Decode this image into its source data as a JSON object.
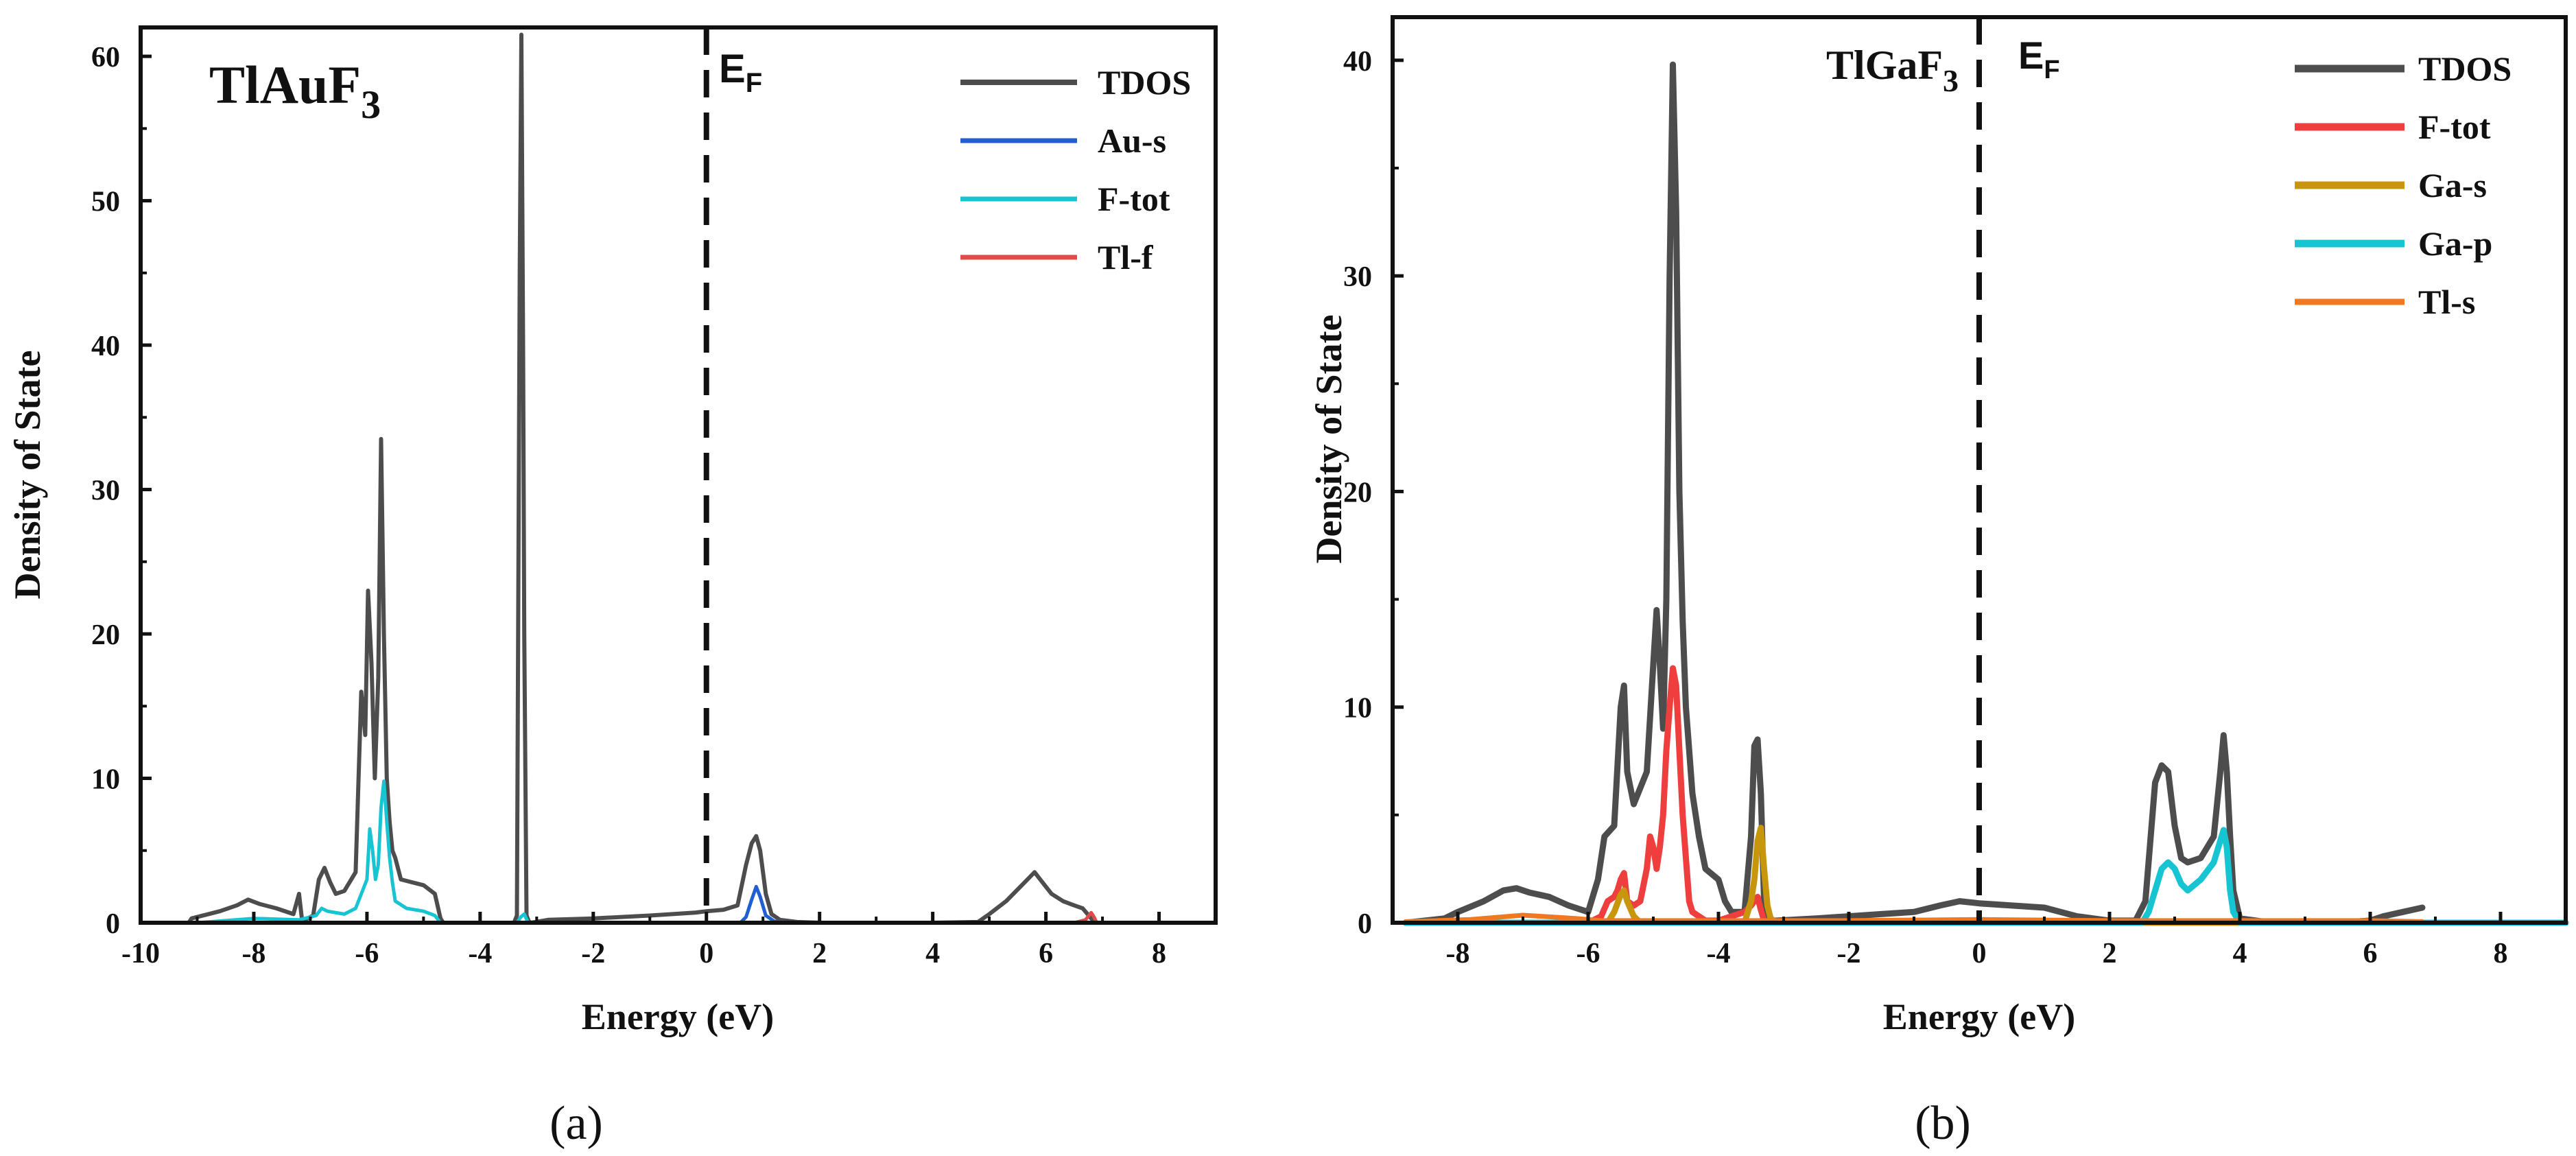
{
  "chart_data": [
    {
      "panel": "a",
      "caption": "(a)",
      "type": "line",
      "title_main": "TlAuF",
      "title_sub": "3",
      "fermi_main": "E",
      "fermi_sub": "F",
      "fermi_x": 0,
      "xlabel": "Energy (eV)",
      "ylabel": "Density of State",
      "xlim": [
        -10,
        9
      ],
      "ylim": [
        0,
        62
      ],
      "xticks": [
        -10,
        -8,
        -6,
        -4,
        -2,
        0,
        2,
        4,
        6,
        8
      ],
      "xtick_labels": [
        "-10",
        "-8",
        "-6",
        "-4",
        "-2",
        "0",
        "2",
        "4",
        "6",
        "8"
      ],
      "yticks": [
        0,
        10,
        20,
        30,
        40,
        50,
        60
      ],
      "ytick_labels": [
        "0",
        "10",
        "20",
        "30",
        "40",
        "50",
        "60"
      ],
      "legend_position": "top-right",
      "series": [
        {
          "name": "TDOS",
          "color": "#4d4d4d",
          "x": [
            -10,
            -9.15,
            -9.1,
            -8.6,
            -8.3,
            -8.1,
            -7.9,
            -7.6,
            -7.3,
            -7.2,
            -7.15,
            -7.1,
            -6.95,
            -6.85,
            -6.75,
            -6.65,
            -6.55,
            -6.4,
            -6.2,
            -6.1,
            -6.03,
            -5.98,
            -5.92,
            -5.86,
            -5.8,
            -5.75,
            -5.7,
            -5.65,
            -5.6,
            -5.55,
            -5.5,
            -5.4,
            -5.2,
            -5.0,
            -4.8,
            -4.7,
            -4.65,
            -4.6,
            -3.4,
            -3.35,
            -3.3,
            -3.27,
            -3.24,
            -3.22,
            -3.18,
            -3.14,
            -3.1,
            -2.8,
            -2.0,
            -1.0,
            -0.2,
            0.0,
            0.3,
            0.55,
            0.7,
            0.8,
            0.88,
            0.95,
            1.05,
            1.15,
            1.3,
            1.6,
            2.0,
            3.0,
            4.0,
            4.8,
            5.0,
            5.3,
            5.5,
            5.7,
            5.8,
            5.9,
            6.1,
            6.3,
            6.5,
            6.65,
            6.8,
            6.9
          ],
          "y": [
            0,
            0,
            0.3,
            0.8,
            1.2,
            1.6,
            1.3,
            1.0,
            0.6,
            2.0,
            0.3,
            0.2,
            0.5,
            3.0,
            3.8,
            2.8,
            2.0,
            2.2,
            3.5,
            16.0,
            13.0,
            23.0,
            18.0,
            10.0,
            17.0,
            33.5,
            20.0,
            10.0,
            7.0,
            5.0,
            4.5,
            3.0,
            2.8,
            2.6,
            2.0,
            0.3,
            0,
            0,
            0,
            0.5,
            45.0,
            61.5,
            40.0,
            20.0,
            0.5,
            0.1,
            0,
            0.2,
            0.3,
            0.5,
            0.7,
            0.8,
            0.9,
            1.2,
            4.0,
            5.5,
            6.0,
            5.0,
            2.0,
            0.6,
            0.2,
            0.05,
            0,
            0,
            0,
            0.05,
            0.6,
            1.5,
            2.3,
            3.1,
            3.5,
            3.0,
            2.0,
            1.5,
            1.2,
            1.0,
            0.3,
            0
          ],
          "stroke": 6
        },
        {
          "name": "Au-s",
          "color": "#1f5fd1",
          "x": [
            -10,
            0.6,
            0.7,
            0.8,
            0.88,
            0.95,
            1.05,
            1.2,
            1.5,
            9
          ],
          "y": [
            0,
            0,
            0.4,
            1.6,
            2.5,
            1.8,
            0.5,
            0.1,
            0,
            0
          ],
          "stroke": 5
        },
        {
          "name": "F-tot",
          "color": "#17c4d2",
          "x": [
            -10,
            -9.0,
            -8.0,
            -7.2,
            -6.9,
            -6.8,
            -6.7,
            -6.4,
            -6.2,
            -6.0,
            -5.95,
            -5.9,
            -5.85,
            -5.8,
            -5.75,
            -5.7,
            -5.65,
            -5.6,
            -5.55,
            -5.5,
            -5.3,
            -5.0,
            -4.8,
            -4.7,
            -3.35,
            -3.28,
            -3.22,
            -3.15,
            9
          ],
          "y": [
            0,
            0,
            0.3,
            0.2,
            0.5,
            1.0,
            0.8,
            0.6,
            1.0,
            3.0,
            6.5,
            5.0,
            3.0,
            4.0,
            8.0,
            9.8,
            7.0,
            4.5,
            2.8,
            1.5,
            1.0,
            0.8,
            0.5,
            0,
            0,
            0.4,
            0.6,
            0,
            0
          ],
          "stroke": 5
        },
        {
          "name": "Tl-f",
          "color": "#e24a4a",
          "x": [
            -10,
            6.5,
            6.7,
            6.8,
            6.85,
            6.9,
            9
          ],
          "y": [
            0,
            0,
            0.2,
            0.7,
            0.4,
            0,
            0
          ],
          "stroke": 5
        }
      ]
    },
    {
      "panel": "b",
      "caption": "(b)",
      "type": "line",
      "title_main": "TlGaF",
      "title_sub": "3",
      "fermi_main": "E",
      "fermi_sub": "F",
      "fermi_x": 0,
      "xlabel": "Energy (eV)",
      "ylabel": "Density of State",
      "xlim": [
        -9,
        9
      ],
      "ylim": [
        0,
        42
      ],
      "xticks": [
        -8,
        -6,
        -4,
        -2,
        0,
        2,
        4,
        6,
        8
      ],
      "xtick_labels": [
        "-8",
        "-6",
        "-4",
        "-2",
        "0",
        "2",
        "4",
        "6",
        "8"
      ],
      "yticks": [
        0,
        10,
        20,
        30,
        40
      ],
      "ytick_labels": [
        "0",
        "10",
        "20",
        "30",
        "40"
      ],
      "legend_position": "top-right",
      "series": [
        {
          "name": "TDOS",
          "color": "#4d4d4d",
          "x": [
            -8.8,
            -8.2,
            -8.0,
            -7.6,
            -7.3,
            -7.1,
            -6.9,
            -6.6,
            -6.3,
            -6.0,
            -5.85,
            -5.75,
            -5.6,
            -5.5,
            -5.45,
            -5.4,
            -5.3,
            -5.1,
            -5.0,
            -4.95,
            -4.9,
            -4.85,
            -4.8,
            -4.75,
            -4.7,
            -4.65,
            -4.6,
            -4.55,
            -4.5,
            -4.45,
            -4.4,
            -4.3,
            -4.2,
            -4.0,
            -3.9,
            -3.8,
            -3.6,
            -3.5,
            -3.45,
            -3.4,
            -3.35,
            -3.3,
            -3.25,
            -3.2,
            -3.1,
            -2.5,
            -2.0,
            -1.5,
            -1.0,
            -0.6,
            -0.3,
            0.0,
            0.5,
            1.0,
            1.5,
            2.0,
            2.4,
            2.55,
            2.7,
            2.8,
            2.9,
            3.0,
            3.1,
            3.2,
            3.4,
            3.6,
            3.7,
            3.75,
            3.8,
            3.85,
            3.9,
            4.0,
            4.5,
            5.0,
            5.5,
            6.0,
            6.2,
            6.5,
            6.8
          ],
          "y": [
            0,
            0.2,
            0.5,
            1.0,
            1.5,
            1.6,
            1.4,
            1.2,
            0.8,
            0.5,
            2.0,
            4.0,
            4.5,
            10.0,
            11.0,
            7.0,
            5.5,
            7.0,
            12.0,
            14.5,
            12.0,
            9.0,
            15.0,
            30.0,
            39.8,
            33.0,
            20.0,
            14.0,
            10.0,
            8.0,
            6.0,
            4.0,
            2.5,
            2.0,
            1.0,
            0.5,
            0.5,
            4.0,
            8.2,
            8.5,
            6.0,
            1.0,
            0.3,
            0.1,
            0.1,
            0.2,
            0.3,
            0.4,
            0.5,
            0.8,
            1.0,
            0.9,
            0.8,
            0.7,
            0.3,
            0.1,
            0.1,
            1.0,
            6.5,
            7.3,
            7.0,
            4.5,
            3.0,
            2.8,
            3.0,
            4.0,
            7.0,
            8.7,
            7.0,
            4.0,
            1.5,
            0.2,
            0,
            0,
            0,
            0.1,
            0.3,
            0.5,
            0.7
          ],
          "stroke": 9
        },
        {
          "name": "F-tot",
          "color": "#ee3e3e",
          "x": [
            -8.8,
            -6.0,
            -5.8,
            -5.7,
            -5.6,
            -5.55,
            -5.5,
            -5.45,
            -5.4,
            -5.3,
            -5.2,
            -5.1,
            -5.05,
            -5.0,
            -4.95,
            -4.9,
            -4.85,
            -4.8,
            -4.75,
            -4.7,
            -4.65,
            -4.6,
            -4.55,
            -4.5,
            -4.45,
            -4.4,
            -4.3,
            -4.2,
            -4.0,
            -3.8,
            -3.6,
            -3.5,
            -3.45,
            -3.4,
            -3.35,
            -3.3,
            -3.2,
            9
          ],
          "y": [
            0,
            0,
            0.3,
            1.0,
            1.2,
            1.5,
            2.0,
            2.3,
            1.0,
            0.8,
            1.0,
            2.5,
            4.0,
            3.5,
            2.5,
            3.5,
            5.0,
            8.0,
            10.0,
            11.8,
            11.0,
            8.0,
            5.0,
            3.0,
            1.0,
            0.5,
            0.3,
            0.1,
            0.1,
            0.3,
            0.5,
            0.8,
            1.0,
            1.2,
            0.6,
            0.1,
            0,
            0
          ],
          "stroke": 9
        },
        {
          "name": "Ga-s",
          "color": "#c8960d",
          "x": [
            -8.8,
            -5.7,
            -5.6,
            -5.5,
            -5.45,
            -5.4,
            -5.3,
            -5.2,
            -3.6,
            -3.5,
            -3.45,
            -3.4,
            -3.35,
            -3.3,
            -3.25,
            -3.2,
            -3.1,
            9
          ],
          "y": [
            0,
            0,
            0.5,
            1.3,
            1.5,
            1.0,
            0.3,
            0,
            0,
            1.0,
            2.0,
            3.8,
            4.4,
            2.5,
            0.8,
            0.2,
            0,
            0
          ],
          "stroke": 9
        },
        {
          "name": "Ga-p",
          "color": "#17c4d2",
          "x": [
            -8.8,
            2.5,
            2.6,
            2.7,
            2.8,
            2.9,
            3.0,
            3.1,
            3.2,
            3.4,
            3.6,
            3.7,
            3.75,
            3.8,
            3.85,
            3.9,
            4.0,
            9
          ],
          "y": [
            0,
            0,
            0.5,
            1.5,
            2.5,
            2.8,
            2.5,
            1.8,
            1.5,
            2.0,
            2.8,
            3.8,
            4.3,
            3.5,
            1.5,
            0.5,
            0,
            0
          ],
          "stroke": 9
        },
        {
          "name": "Tl-s",
          "color": "#f07820",
          "x": [
            -8.8,
            -7.8,
            -7.0,
            -6.2,
            -5.8,
            -5.0,
            -4.0,
            -2.0,
            0.0,
            2.0,
            4.0,
            6.0,
            6.8
          ],
          "y": [
            0.05,
            0.15,
            0.35,
            0.2,
            0.1,
            0.1,
            0.1,
            0.1,
            0.15,
            0.1,
            0.1,
            0.1,
            0.05
          ],
          "stroke": 7
        }
      ]
    }
  ]
}
